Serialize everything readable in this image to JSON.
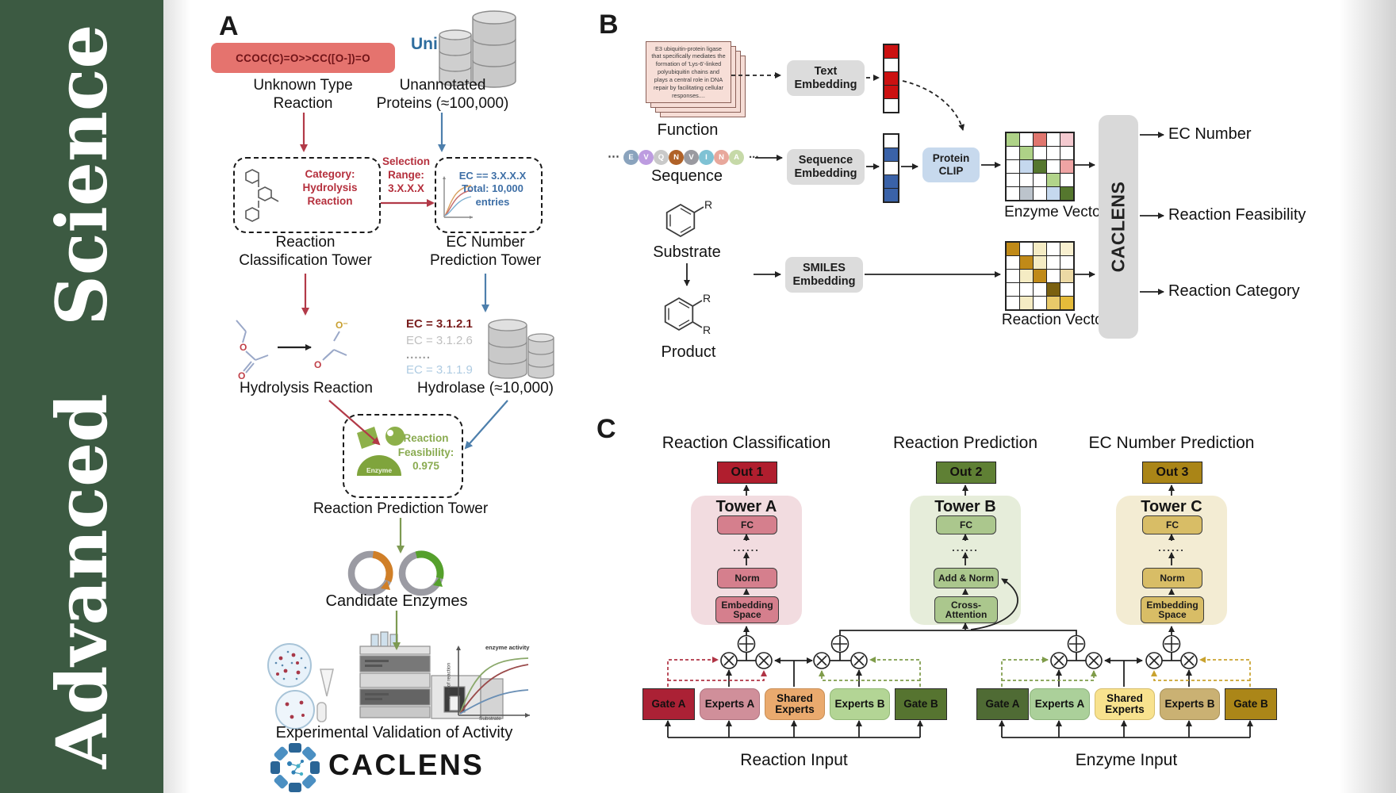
{
  "journal": {
    "name": "Advanced Science"
  },
  "colors": {
    "sidebar_green": "#3c5a42",
    "red_arrow": "#b23a48",
    "blue_arrow": "#4d7fac",
    "olive_arrow": "#7d9a52",
    "smiles_bg": "#e5736e",
    "smiles_text": "#701418",
    "out1": "#b01e2e",
    "out2": "#5f8034",
    "out3": "#aa8517",
    "tower_a_bg": "#f2dce0",
    "tower_b_bg": "#e6edda",
    "tower_c_bg": "#f3ecd3"
  },
  "panel_a": {
    "label": "A",
    "smiles": "CCOC(C)=O>>CC([O-])=O",
    "unknown_type": "Unknown Type\nReaction",
    "uniprot": "UniProt",
    "unannotated": "Unannotated\nProteins (≈100,000)",
    "category": "Category:\nHydrolysis\nReaction",
    "selection": "Selection\nRange:\n3.X.X.X",
    "ec_filter": "EC == 3.X.X.X\nTotal: 10,000\nentries",
    "classification_tower": "Reaction\nClassification Tower",
    "ec_tower": "EC Number\nPrediction Tower",
    "ec_list": [
      "EC = 3.1.2.1",
      "EC = 3.1.2.6",
      "......",
      "EC = 3.1.1.9"
    ],
    "hydrolysis": "Hydrolysis Reaction",
    "hydrolase": "Hydrolase (≈10,000)",
    "enzyme_badge": "Enzyme",
    "feasibility": "Reaction\nFeasibility:\n0.975",
    "prediction_tower": "Reaction Prediction Tower",
    "candidate": "Candidate Enzymes",
    "validation": "Experimental Validation of Activity",
    "activity_plot": {
      "title": "enzyme activity",
      "ylabel": "Rate of reaction",
      "xlabel": "Substrate"
    },
    "brand": "CACLENS"
  },
  "panel_b": {
    "label": "B",
    "function_text": "E3 ubiquitin-protein ligase that specifically mediates the formation of 'Lys-6'-linked polyubiquitin chains and plays a central role in DNA repair by facilitating cellular responses....",
    "function_label": "Function",
    "ellipsis_left": "⋯",
    "ellipsis_right": "...",
    "residues": [
      {
        "l": "E",
        "c": "#8aa3bd"
      },
      {
        "l": "V",
        "c": "#bd9ce0"
      },
      {
        "l": "Q",
        "c": "#c9c9c9"
      },
      {
        "l": "N",
        "c": "#b06228"
      },
      {
        "l": "V",
        "c": "#9a9aa0"
      },
      {
        "l": "I",
        "c": "#7fc2d4"
      },
      {
        "l": "N",
        "c": "#e8a89c"
      },
      {
        "l": "A",
        "c": "#c6d9a8"
      }
    ],
    "sequence_label": "Sequence",
    "substrate_label": "Substrate",
    "product_label": "Product",
    "r_group": "R",
    "text_embedding": "Text\nEmbedding",
    "sequence_embedding": "Sequence\nEmbedding",
    "smiles_embedding": "SMILES\nEmbedding",
    "protein_clip": "Protein\nCLIP",
    "text_vector": [
      "#cc1111",
      "#ffffff",
      "#cc1111",
      "#cc1111",
      "#ffffff"
    ],
    "sequence_vector": [
      "#ffffff",
      "#3a62a8",
      "#ffffff",
      "#3a62a8",
      "#3a62a8"
    ],
    "enzyme_matrix": [
      [
        "#aed287",
        "#ffffff",
        "#e0766e",
        "#ffffff",
        "#f4cad0"
      ],
      [
        "#ffffff",
        "#aed287",
        "#ffffff",
        "#ffffff",
        "#ffffff"
      ],
      [
        "#ffffff",
        "#c5d8ee",
        "#55772e",
        "#ffffff",
        "#efa4a4"
      ],
      [
        "#ffffff",
        "#ffffff",
        "#ffffff",
        "#b2d48a",
        "#ffffff"
      ],
      [
        "#ffffff",
        "#bcc4cc",
        "#ffffff",
        "#c5d8ee",
        "#55772e"
      ]
    ],
    "reaction_matrix": [
      [
        "#c08a18",
        "#ffffff",
        "#f5ecc4",
        "#ffffff",
        "#f8f0d0"
      ],
      [
        "#ffffff",
        "#c08a18",
        "#f5ecc4",
        "#ffffff",
        "#ffffff"
      ],
      [
        "#ffffff",
        "#f5ecc4",
        "#c08a18",
        "#ffffff",
        "#ecd9a4"
      ],
      [
        "#ffffff",
        "#ffffff",
        "#ffffff",
        "#7a6010",
        "#ffffff"
      ],
      [
        "#ffffff",
        "#f5ecc4",
        "#ffffff",
        "#e8c96a",
        "#e5bb3a"
      ]
    ],
    "enzyme_vector_label": "Enzyme Vector",
    "reaction_vector_label": "Reaction Vector",
    "caclens": "CACLENS",
    "outputs": [
      "EC Number",
      "Reaction Feasibility",
      "Reaction Category"
    ]
  },
  "panel_c": {
    "label": "C",
    "titles": [
      "Reaction Classification",
      "Reaction Prediction",
      "EC Number Prediction"
    ],
    "outs": [
      "Out 1",
      "Out 2",
      "Out 3"
    ],
    "dots": "......",
    "towers": [
      {
        "name": "Tower A",
        "fc": "FC",
        "mid": "Norm",
        "base": "Embedding\nSpace"
      },
      {
        "name": "Tower B",
        "fc": "FC",
        "mid": "Add & Norm",
        "base": "Cross-\nAttention"
      },
      {
        "name": "Tower C",
        "fc": "FC",
        "mid": "Norm",
        "base": "Embedding\nSpace"
      }
    ],
    "groups": [
      {
        "gate_a": "Gate A",
        "experts_a": "Experts A",
        "shared": "Shared\nExperts",
        "experts_b": "Experts B",
        "gate_b": "Gate B",
        "input_label": "Reaction Input"
      },
      {
        "gate_a": "Gate A",
        "experts_a": "Experts A",
        "shared": "Shared\nExperts",
        "experts_b": "Experts B",
        "gate_b": "Gate B",
        "input_label": "Enzyme Input"
      }
    ]
  }
}
